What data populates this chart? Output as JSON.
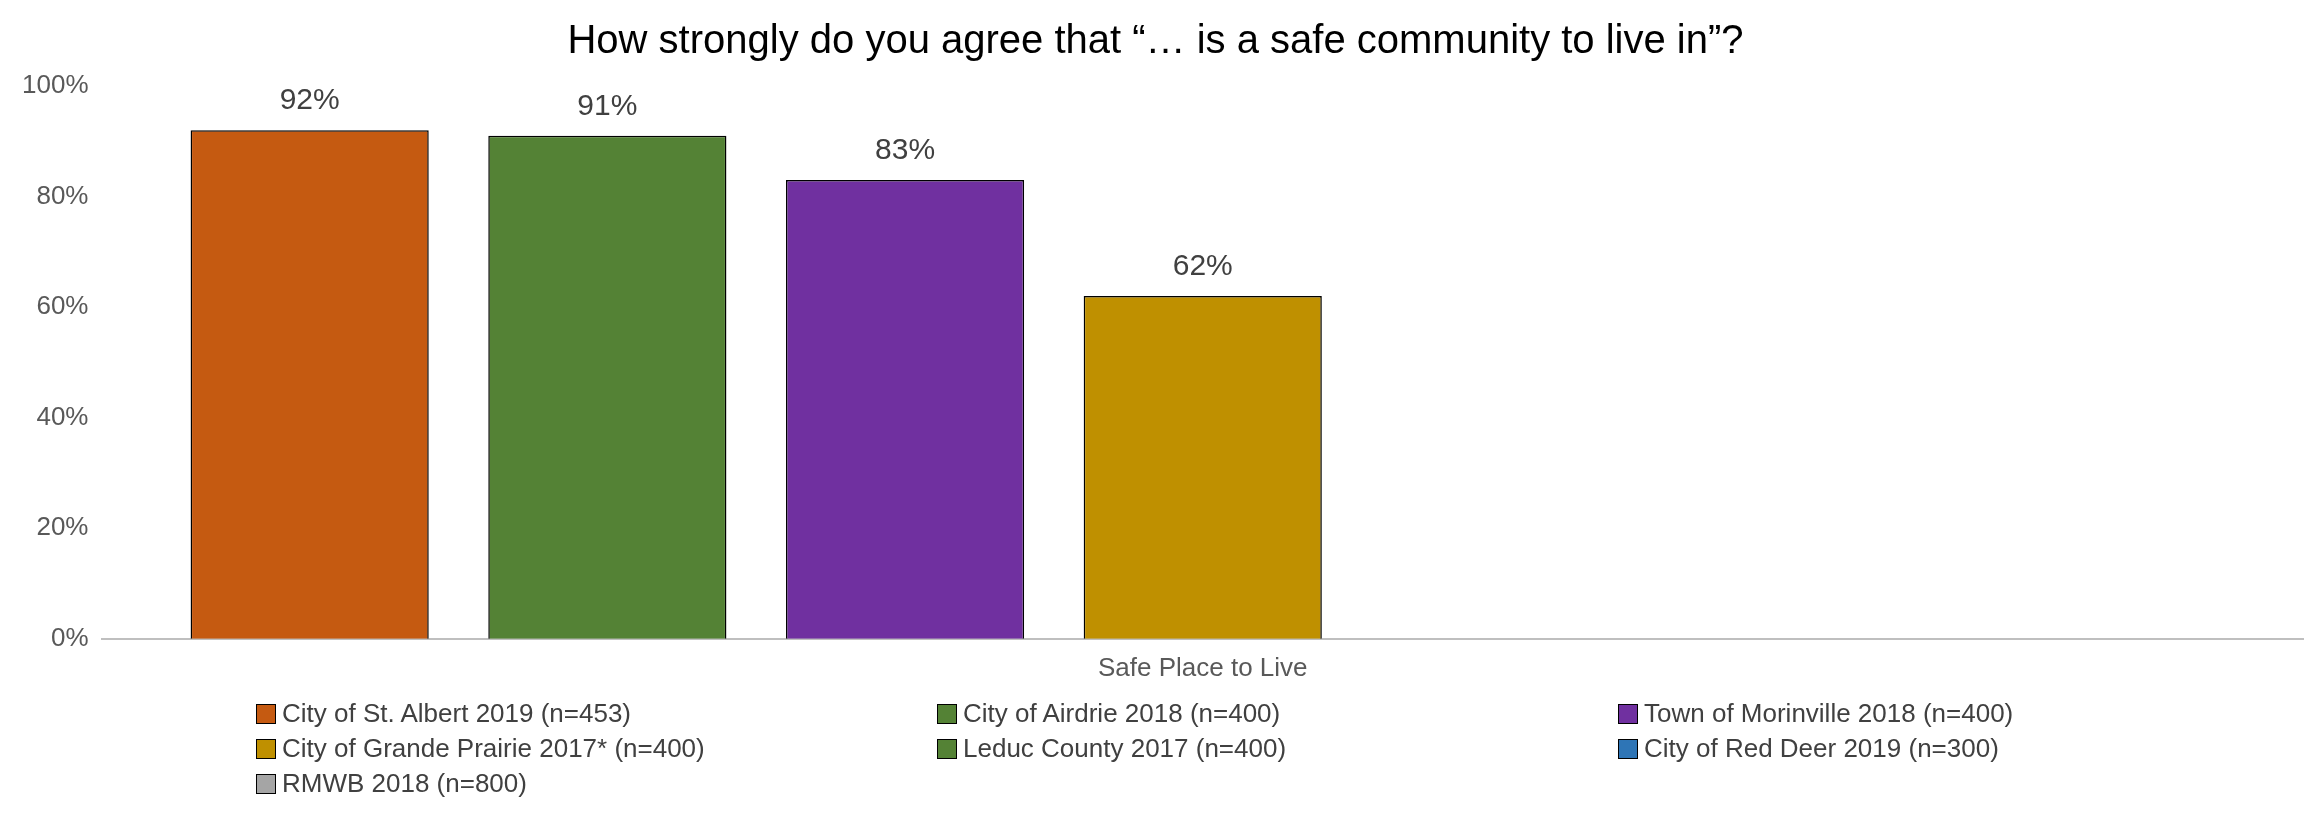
{
  "chart_data": {
    "type": "bar",
    "title": "How strongly do you agree that “… is a safe community to live in”?",
    "categories": [
      "Safe Place to Live"
    ],
    "series": [
      {
        "name": "City of St. Albert 2019 (n=453)",
        "color": "#c55a11",
        "values": [
          92
        ],
        "value_labels": [
          "92%"
        ]
      },
      {
        "name": "City of Airdrie 2018 (n=400)",
        "color": "#548235",
        "values": [
          91
        ],
        "value_labels": [
          "91%"
        ]
      },
      {
        "name": "Town of Morinville 2018 (n=400)",
        "color": "#7030a0",
        "values": [
          83
        ],
        "value_labels": [
          "83%"
        ]
      },
      {
        "name": "City of Grande Prairie 2017* (n=400)",
        "color": "#bf9000",
        "values": [
          62
        ],
        "value_labels": [
          "62%"
        ]
      },
      {
        "name": "Leduc County 2017 (n=400)",
        "color": "#548235",
        "values": [
          null
        ],
        "value_labels": [
          null
        ]
      },
      {
        "name": "City of Red Deer 2019 (n=300)",
        "color": "#2e75b6",
        "values": [
          null
        ],
        "value_labels": [
          null
        ]
      },
      {
        "name": "RMWB 2018 (n=800)",
        "color": "#a5a5a5",
        "values": [
          null
        ],
        "value_labels": [
          null
        ]
      }
    ],
    "ylim": [
      0,
      100
    ],
    "yticks": [
      {
        "value": 0,
        "label": "0%"
      },
      {
        "value": 20,
        "label": "20%"
      },
      {
        "value": 40,
        "label": "40%"
      },
      {
        "value": 60,
        "label": "60%"
      },
      {
        "value": 80,
        "label": "80%"
      },
      {
        "value": 100,
        "label": "100%"
      }
    ],
    "grid": false,
    "legend": "bottom"
  }
}
